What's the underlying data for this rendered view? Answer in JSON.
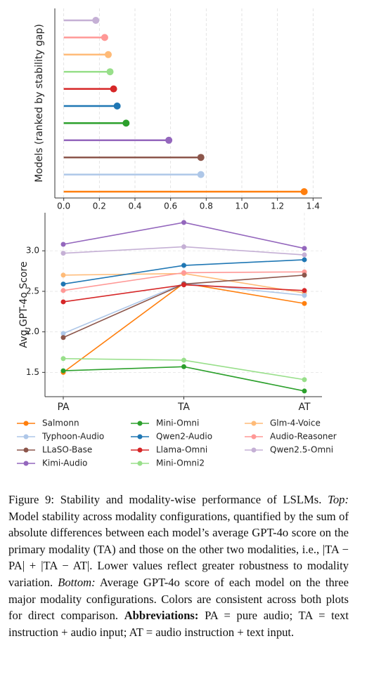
{
  "chart_data": [
    {
      "type": "lollipop",
      "y_label": "Models (ranked by stability gap)",
      "values": [
        0.18,
        0.23,
        0.25,
        0.26,
        0.28,
        0.3,
        0.35,
        0.59,
        0.77,
        0.77,
        1.35
      ],
      "colors": [
        "#c5b0d5",
        "#ff9896",
        "#ffbb78",
        "#98df8a",
        "#d62728",
        "#1f77b4",
        "#2ca02c",
        "#9467bd",
        "#8c564b",
        "#aec7e8",
        "#ff7f0e"
      ],
      "xlim": [
        -0.05,
        1.45
      ],
      "xticks": [
        {
          "value": 0,
          "label": "0.0"
        },
        0.2,
        0.4,
        0.6,
        0.8,
        {
          "value": 1,
          "label": "1.0"
        },
        1.2,
        1.4
      ],
      "grid": true
    },
    {
      "type": "line",
      "y_label": "Avg.GPT-4o Score",
      "categories": [
        "PA",
        "TA",
        "AT"
      ],
      "series": [
        {
          "name": "Salmonn",
          "color": "#ff7f0e",
          "values": [
            1.5,
            2.6,
            2.35
          ]
        },
        {
          "name": "Mini-Omni",
          "color": "#2ca02c",
          "values": [
            1.52,
            1.57,
            1.27
          ]
        },
        {
          "name": "Glm-4-Voice",
          "color": "#ffbb78",
          "values": [
            2.7,
            2.72,
            2.48
          ]
        },
        {
          "name": "Typhoon-Audio",
          "color": "#aec7e8",
          "values": [
            1.98,
            2.6,
            2.45
          ]
        },
        {
          "name": "Qwen2-Audio",
          "color": "#1f77b4",
          "values": [
            2.59,
            2.82,
            2.89
          ]
        },
        {
          "name": "Audio-Reasoner",
          "color": "#ff9896",
          "values": [
            2.51,
            2.73,
            2.74
          ]
        },
        {
          "name": "LLaSO-Base",
          "color": "#8c564b",
          "values": [
            1.93,
            2.59,
            2.7
          ]
        },
        {
          "name": "Llama-Omni",
          "color": "#d62728",
          "values": [
            2.37,
            2.58,
            2.51
          ]
        },
        {
          "name": "Qwen2.5-Omni",
          "color": "#c5b0d5",
          "values": [
            2.97,
            3.05,
            2.95
          ]
        },
        {
          "name": "Kimi-Audio",
          "color": "#9467bd",
          "values": [
            3.08,
            3.35,
            3.03
          ]
        },
        {
          "name": "Mini-Omni2",
          "color": "#98df8a",
          "values": [
            1.67,
            1.65,
            1.41
          ]
        }
      ],
      "ylim": [
        1.2,
        3.47
      ],
      "yticks": [
        1.5,
        {
          "value": 2,
          "label": "2.0"
        },
        2.5,
        {
          "value": 3,
          "label": "3.0"
        }
      ],
      "grid": true,
      "legend": "bottom"
    }
  ],
  "caption": {
    "runs": [
      "Figure 9:",
      "Stability and modality-wise performance of LSLMs.",
      "Top:",
      "Model stability across modality configurations, quantified by the sum of absolute differences between each model’s average GPT-4o score on the primary modality (TA) and those on the other two modalities, i.e., |TA − PA| + |TA − AT|. Lower values reflect greater robustness to modality variation.",
      "Bottom:",
      "Average GPT-4o score of each model on the three major modality configurations. Colors are consistent across both plots for direct comparison.",
      "Abbreviations:",
      "PA = pure audio; TA = text instruction + audio input; AT = audio instruction + text input."
    ]
  }
}
